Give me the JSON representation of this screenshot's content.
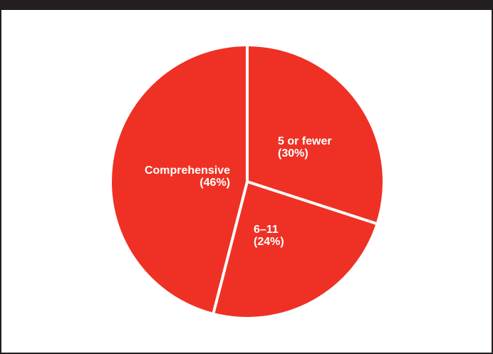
{
  "colors": {
    "slice_fill": "#ee3124",
    "separator": "#ffffff",
    "frame": "#231f20"
  },
  "chart_data": {
    "type": "pie",
    "start_angle_deg": 0,
    "direction": "clockwise",
    "slices": [
      {
        "label": "5 or fewer",
        "value_label": "(30%)",
        "value": 30
      },
      {
        "label": "6–11",
        "value_label": "(24%)",
        "value": 24
      },
      {
        "label": "Comprehensive",
        "value_label": "(46%)",
        "value": 46
      }
    ]
  }
}
